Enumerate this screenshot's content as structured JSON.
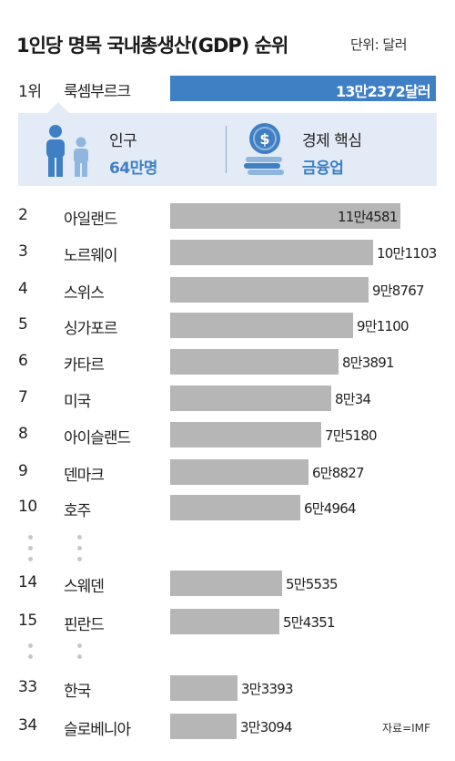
{
  "header": {
    "title": "1인당 명목 국내총생산(GDP) 순위",
    "unit": "단위: 달러"
  },
  "top": {
    "rank": "1위",
    "country": "룩셈부르크",
    "value_label": "13만2372달러",
    "value": 132372
  },
  "info": {
    "population_label": "인구",
    "population_value": "64만명",
    "economy_label": "경제 핵심",
    "economy_value": "금융업",
    "icons": [
      "people-icon",
      "coin-stack-icon"
    ],
    "accent_color": "#3f7fc4",
    "box_color": "#e3ecf6"
  },
  "chart_data": {
    "type": "bar",
    "title": "1인당 명목 국내총생산(GDP) 순위",
    "unit": "단위: 달러",
    "series": [
      {
        "rank": "1",
        "country": "룩셈부르크",
        "value": 132372,
        "label": "13만2372달러"
      },
      {
        "rank": "2",
        "country": "아일랜드",
        "value": 114581,
        "label": "11만4581"
      },
      {
        "rank": "3",
        "country": "노르웨이",
        "value": 101103,
        "label": "10만1103"
      },
      {
        "rank": "4",
        "country": "스위스",
        "value": 98767,
        "label": "9만8767"
      },
      {
        "rank": "5",
        "country": "싱가포르",
        "value": 91100,
        "label": "9만1100"
      },
      {
        "rank": "6",
        "country": "카타르",
        "value": 83891,
        "label": "8만3891"
      },
      {
        "rank": "7",
        "country": "미국",
        "value": 80034,
        "label": "8만34"
      },
      {
        "rank": "8",
        "country": "아이슬랜드",
        "value": 75180,
        "label": "7만5180"
      },
      {
        "rank": "9",
        "country": "덴마크",
        "value": 68827,
        "label": "6만8827"
      },
      {
        "rank": "10",
        "country": "호주",
        "value": 64964,
        "label": "6만4964"
      },
      {
        "rank": "14",
        "country": "스웨덴",
        "value": 55535,
        "label": "5만5535"
      },
      {
        "rank": "15",
        "country": "핀란드",
        "value": 54351,
        "label": "5만4351"
      },
      {
        "rank": "33",
        "country": "한국",
        "value": 33393,
        "label": "3만3393"
      },
      {
        "rank": "34",
        "country": "슬로베니아",
        "value": 33094,
        "label": "3만3094"
      }
    ],
    "colors": {
      "highlight": "#3f7fc4",
      "bar": "#b6b6b6"
    }
  },
  "source": "자료=IMF"
}
